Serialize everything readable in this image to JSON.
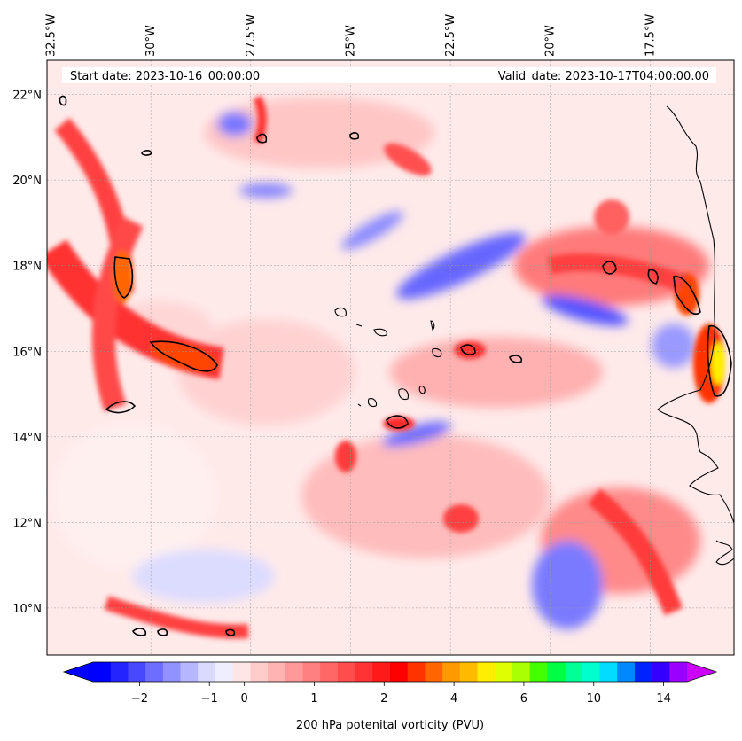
{
  "map": {
    "start_date": "Start date: 2023-10-16_00:00:00",
    "valid_date": "Valid_date: 2023-10-17T04:00:00.00",
    "lon_ticks": [
      "32.5°W",
      "30°W",
      "27.5°W",
      "25°W",
      "22.5°W",
      "20°W",
      "17.5°W"
    ],
    "lon_values": [
      -32.5,
      -30,
      -27.5,
      -25,
      -22.5,
      -20,
      -17.5
    ],
    "lat_ticks": [
      "22°N",
      "20°N",
      "18°N",
      "16°N",
      "14°N",
      "12°N",
      "10°N"
    ],
    "lat_values": [
      22,
      20,
      18,
      16,
      14,
      12,
      10
    ],
    "extent": {
      "lon_min": -32.6,
      "lon_max": -15.4,
      "lat_min": 8.9,
      "lat_max": 22.8
    },
    "field": "200 hPa potential vorticity",
    "contour_level_pvu": 2,
    "colors": {
      "positive": "#ff1a1a",
      "negative": "#3333ff",
      "coastline": "#000000"
    }
  },
  "colorbar": {
    "label": "200 hPa potenital vorticity (PVU)",
    "ticks": [
      "−2",
      "−1",
      "0",
      "1",
      "2",
      "4",
      "6",
      "10",
      "14"
    ],
    "colors": [
      "#0000ff",
      "#2424ff",
      "#4848ff",
      "#6d6dff",
      "#9191ff",
      "#b6b6ff",
      "#dadaff",
      "#eeeeff",
      "#ffe6e6",
      "#ffcccc",
      "#ffb3b3",
      "#ff9999",
      "#ff8080",
      "#ff6666",
      "#ff4d4d",
      "#ff3333",
      "#ff1a1a",
      "#ff0000",
      "#ff3300",
      "#ff6600",
      "#ff9900",
      "#ffbb00",
      "#ffee00",
      "#ddff00",
      "#aaff00",
      "#44ff00",
      "#00ff44",
      "#00ff99",
      "#00ffcc",
      "#00ddff",
      "#0088ff",
      "#0022ff",
      "#3300ff",
      "#9900ff"
    ],
    "extend_min_color": "#0000ff",
    "extend_max_color": "#cc00ff"
  }
}
